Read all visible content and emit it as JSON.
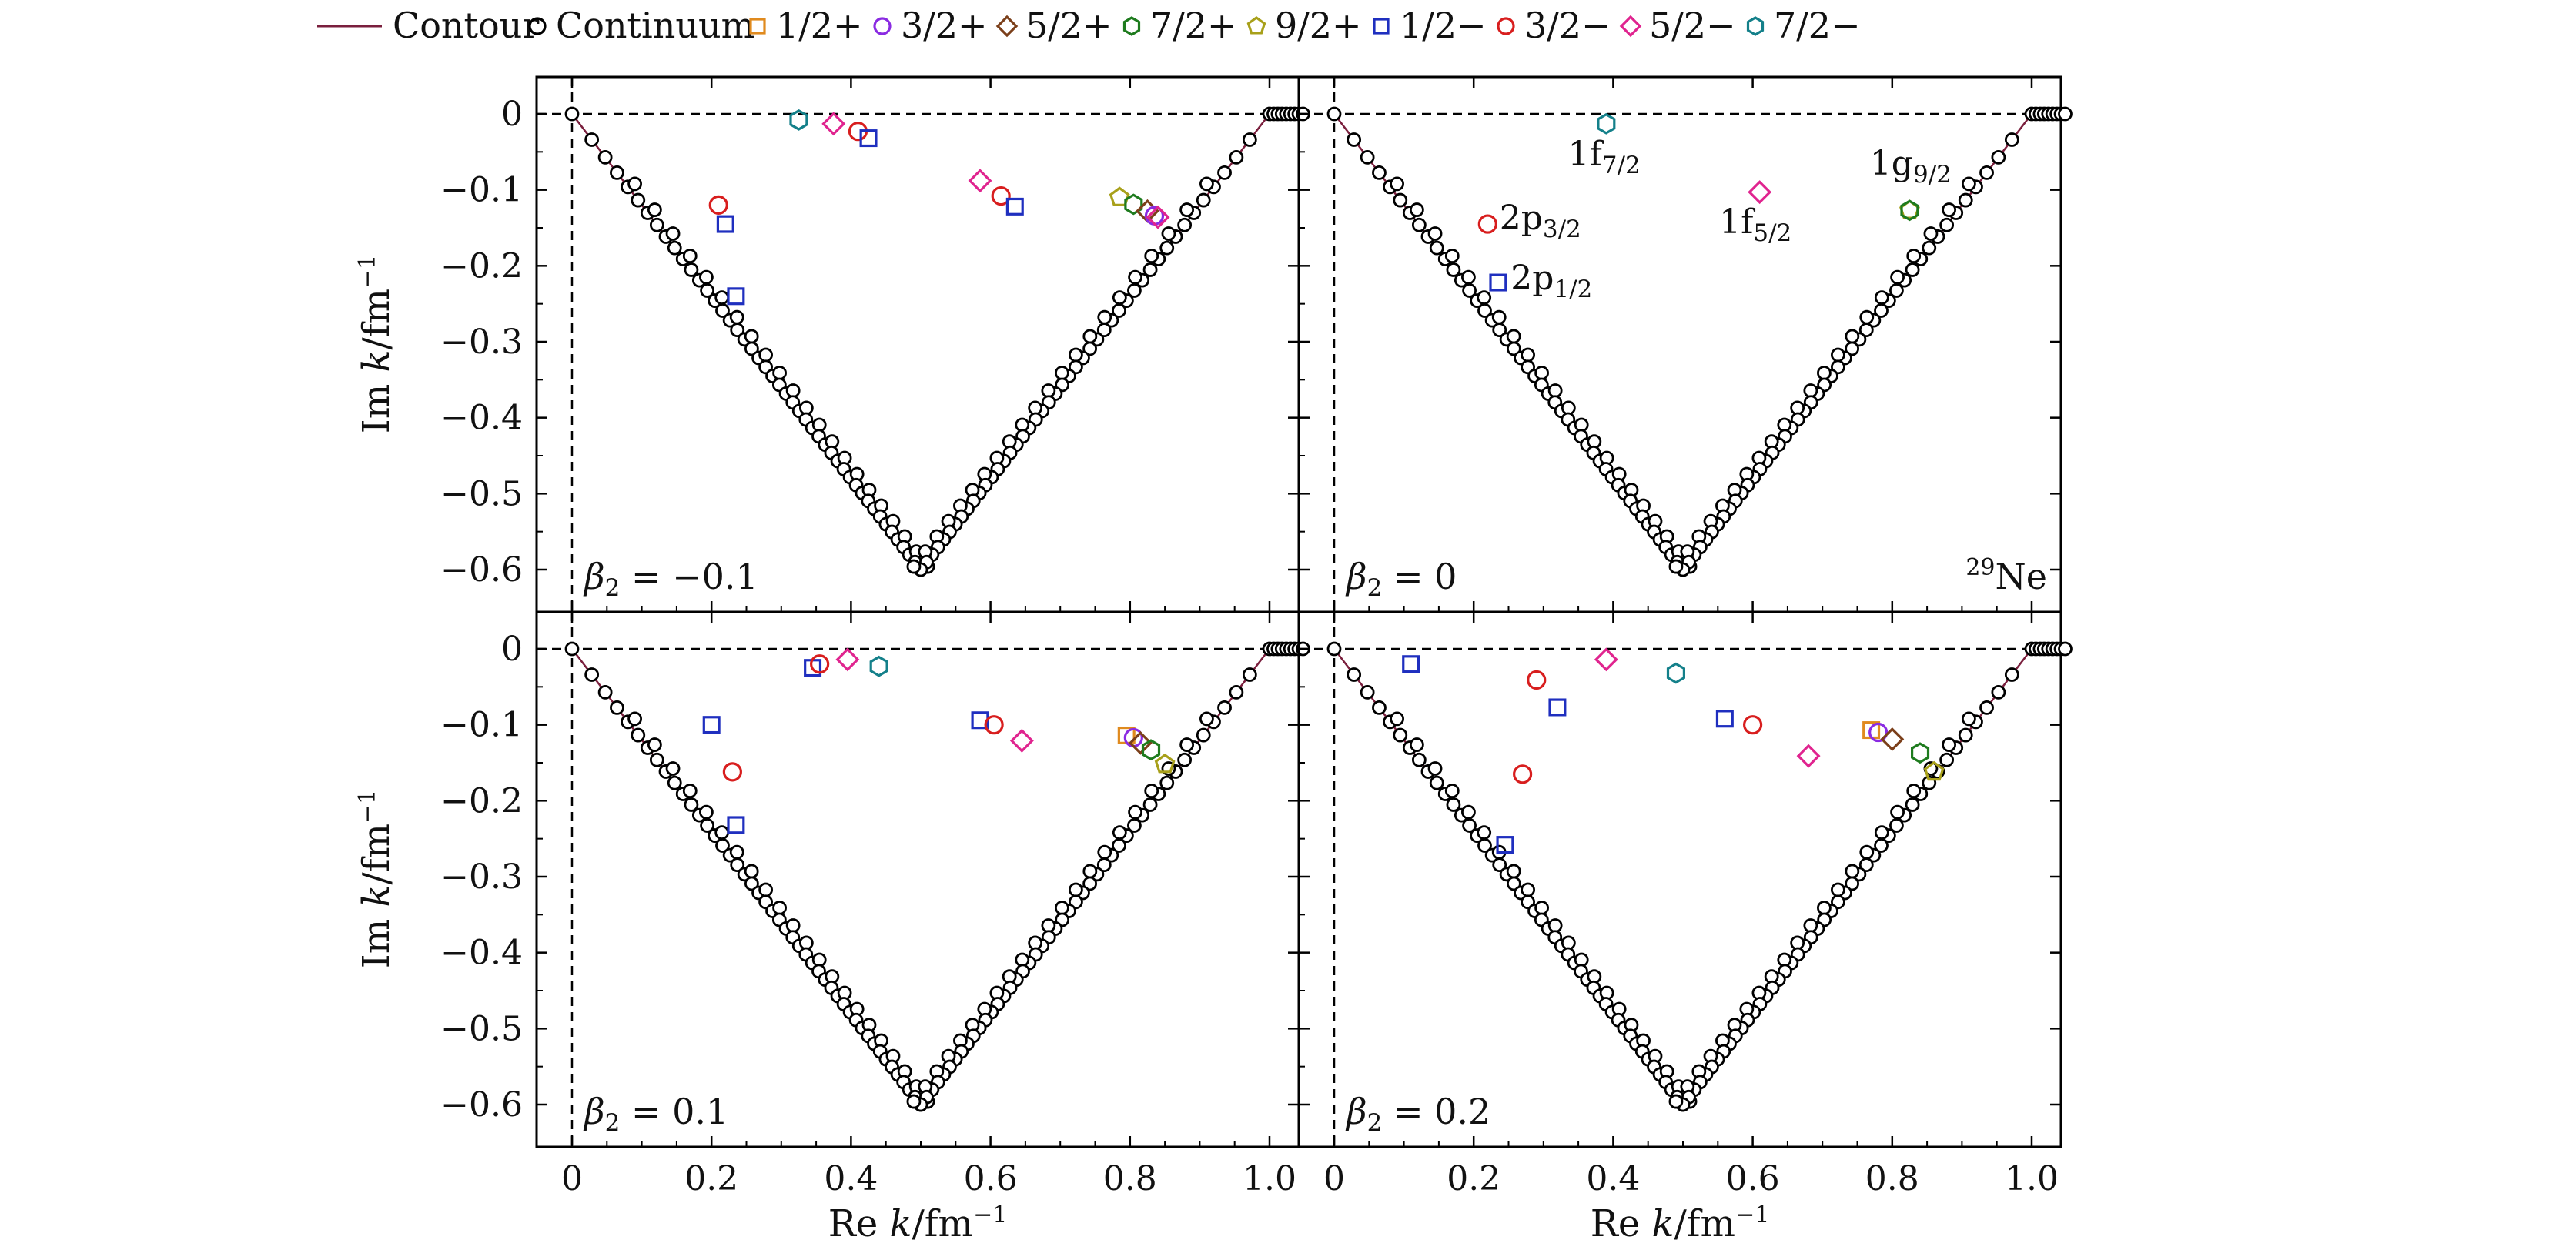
{
  "legend": [
    {
      "key": "contour",
      "label": "Contour",
      "marker": "line",
      "color": "#7a1f3d"
    },
    {
      "key": "continuum",
      "label": "Continuum",
      "marker": "circle",
      "color": "#000000"
    },
    {
      "key": "p12p",
      "label": "1/2+",
      "marker": "square",
      "color": "#e08a1e"
    },
    {
      "key": "p32p",
      "label": "3/2+",
      "marker": "circle",
      "color": "#8a2be2"
    },
    {
      "key": "p52p",
      "label": "5/2+",
      "marker": "diamond",
      "color": "#7b3f1a"
    },
    {
      "key": "p72p",
      "label": "7/2+",
      "marker": "hexagon",
      "color": "#1e7b1e"
    },
    {
      "key": "p92p",
      "label": "9/2+",
      "marker": "pentagon",
      "color": "#a8a01a"
    },
    {
      "key": "p12m",
      "label": "1/2−",
      "marker": "square",
      "color": "#1f2fbf"
    },
    {
      "key": "p32m",
      "label": "3/2−",
      "marker": "circle",
      "color": "#d81e1e"
    },
    {
      "key": "p52m",
      "label": "5/2−",
      "marker": "diamond",
      "color": "#e0248f"
    },
    {
      "key": "p72m",
      "label": "7/2−",
      "marker": "hexagon",
      "color": "#14808a"
    }
  ],
  "axes": {
    "xlabel_prefix": "Re ",
    "xlabel_var": "k",
    "xlabel_unit": "/fm",
    "xlabel_exp": "−1",
    "ylabel_prefix": "Im ",
    "ylabel_var": "k",
    "ylabel_unit": "/fm",
    "ylabel_exp": "−1",
    "xticks": [
      0,
      0.2,
      0.4,
      0.6,
      0.8,
      1.0
    ],
    "xtick_labels": [
      "0",
      "0.2",
      "0.4",
      "0.6",
      "0.8",
      "1.0"
    ],
    "yticks": [
      0,
      -0.1,
      -0.2,
      -0.3,
      -0.4,
      -0.5,
      -0.6
    ],
    "ytick_labels": [
      "0",
      "−0.1",
      "−0.2",
      "−0.3",
      "−0.4",
      "−0.5",
      "−0.6"
    ],
    "xlim": [
      -0.05,
      1.05
    ],
    "ylim": [
      -0.65,
      0.03
    ]
  },
  "chart_data": {
    "type": "scatter",
    "nucleus_label": "Ne",
    "nucleus_mass": "29",
    "contour": {
      "x": [
        0,
        0.5,
        1.0,
        1.05
      ],
      "y": [
        0,
        -0.6,
        0,
        0
      ]
    },
    "panels": [
      {
        "beta_label": "β",
        "beta_sub": "2",
        "beta_value": " = −0.1",
        "points": [
          {
            "s": "p12m",
            "x": 0.22,
            "y": -0.145
          },
          {
            "s": "p12m",
            "x": 0.235,
            "y": -0.24
          },
          {
            "s": "p32m",
            "x": 0.21,
            "y": -0.12
          },
          {
            "s": "p72m",
            "x": 0.325,
            "y": -0.008
          },
          {
            "s": "p52m",
            "x": 0.375,
            "y": -0.013
          },
          {
            "s": "p32m",
            "x": 0.41,
            "y": -0.023
          },
          {
            "s": "p12m",
            "x": 0.425,
            "y": -0.032
          },
          {
            "s": "p52m",
            "x": 0.585,
            "y": -0.088
          },
          {
            "s": "p32m",
            "x": 0.615,
            "y": -0.108
          },
          {
            "s": "p12m",
            "x": 0.635,
            "y": -0.122
          },
          {
            "s": "p92p",
            "x": 0.785,
            "y": -0.11
          },
          {
            "s": "p72p",
            "x": 0.805,
            "y": -0.119
          },
          {
            "s": "p52p",
            "x": 0.825,
            "y": -0.128
          },
          {
            "s": "p32p",
            "x": 0.835,
            "y": -0.134
          },
          {
            "s": "p52m",
            "x": 0.84,
            "y": -0.136
          }
        ]
      },
      {
        "beta_label": "β",
        "beta_sub": "2",
        "beta_value": " = 0",
        "points": [
          {
            "s": "p72m",
            "x": 0.39,
            "y": -0.013
          },
          {
            "s": "p32m",
            "x": 0.22,
            "y": -0.145
          },
          {
            "s": "p12m",
            "x": 0.235,
            "y": -0.222
          },
          {
            "s": "p52m",
            "x": 0.61,
            "y": -0.103
          },
          {
            "s": "p92p",
            "x": 0.825,
            "y": -0.127
          },
          {
            "s": "p72p",
            "x": 0.825,
            "y": -0.127
          }
        ],
        "annotations": [
          {
            "main": "1f",
            "sub": "7/2",
            "x": 0.335,
            "y": -0.068
          },
          {
            "main": "2p",
            "sub": "3/2",
            "x": 0.237,
            "y": -0.152
          },
          {
            "main": "2p",
            "sub": "1/2",
            "x": 0.253,
            "y": -0.231
          },
          {
            "main": "1f",
            "sub": "5/2",
            "x": 0.552,
            "y": -0.157
          },
          {
            "main": "1g",
            "sub": "9/2",
            "x": 0.768,
            "y": -0.08
          }
        ]
      },
      {
        "beta_label": "β",
        "beta_sub": "2",
        "beta_value": " = 0.1",
        "points": [
          {
            "s": "p12m",
            "x": 0.2,
            "y": -0.1
          },
          {
            "s": "p32m",
            "x": 0.23,
            "y": -0.162
          },
          {
            "s": "p12m",
            "x": 0.235,
            "y": -0.232
          },
          {
            "s": "p12m",
            "x": 0.345,
            "y": -0.025
          },
          {
            "s": "p32m",
            "x": 0.355,
            "y": -0.02
          },
          {
            "s": "p52m",
            "x": 0.395,
            "y": -0.014
          },
          {
            "s": "p72m",
            "x": 0.44,
            "y": -0.023
          },
          {
            "s": "p12m",
            "x": 0.585,
            "y": -0.094
          },
          {
            "s": "p32m",
            "x": 0.605,
            "y": -0.1
          },
          {
            "s": "p52m",
            "x": 0.645,
            "y": -0.121
          },
          {
            "s": "p12p",
            "x": 0.795,
            "y": -0.114
          },
          {
            "s": "p32p",
            "x": 0.805,
            "y": -0.117
          },
          {
            "s": "p52p",
            "x": 0.815,
            "y": -0.124
          },
          {
            "s": "p72p",
            "x": 0.83,
            "y": -0.133
          },
          {
            "s": "p92p",
            "x": 0.85,
            "y": -0.152
          }
        ]
      },
      {
        "beta_label": "β",
        "beta_sub": "2",
        "beta_value": " = 0.2",
        "points": [
          {
            "s": "p12m",
            "x": 0.11,
            "y": -0.02
          },
          {
            "s": "p32m",
            "x": 0.29,
            "y": -0.041
          },
          {
            "s": "p12m",
            "x": 0.32,
            "y": -0.077
          },
          {
            "s": "p32m",
            "x": 0.27,
            "y": -0.165
          },
          {
            "s": "p12m",
            "x": 0.245,
            "y": -0.258
          },
          {
            "s": "p52m",
            "x": 0.39,
            "y": -0.014
          },
          {
            "s": "p72m",
            "x": 0.49,
            "y": -0.032
          },
          {
            "s": "p12m",
            "x": 0.56,
            "y": -0.092
          },
          {
            "s": "p32m",
            "x": 0.6,
            "y": -0.1
          },
          {
            "s": "p52m",
            "x": 0.68,
            "y": -0.141
          },
          {
            "s": "p12p",
            "x": 0.77,
            "y": -0.107
          },
          {
            "s": "p32p",
            "x": 0.78,
            "y": -0.11
          },
          {
            "s": "p52p",
            "x": 0.8,
            "y": -0.119
          },
          {
            "s": "p72p",
            "x": 0.84,
            "y": -0.137
          },
          {
            "s": "p92p",
            "x": 0.86,
            "y": -0.162
          }
        ]
      }
    ]
  }
}
